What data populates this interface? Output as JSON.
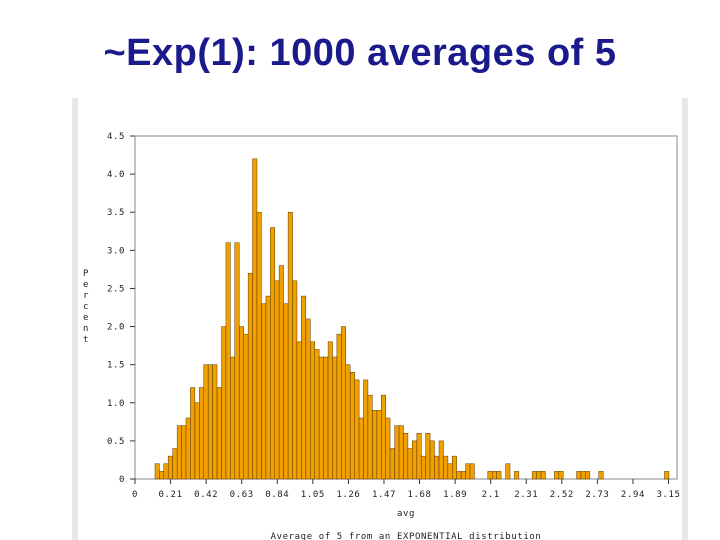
{
  "slide": {
    "title": "~Exp(1): 1000 averages of 5"
  },
  "colors": {
    "title": "#1a1a8c",
    "bar_fill": "#f2a000",
    "bar_stroke": "#5a3b00",
    "frame": "#888888"
  },
  "chart_data": {
    "type": "bar",
    "title": "",
    "xlabel": "avg",
    "ylabel": "Percent",
    "caption": "Average of 5 from an EXPONENTIAL distribution",
    "xlim": [
      0,
      3.2
    ],
    "ylim": [
      0,
      4.5
    ],
    "yticks": [
      "0",
      "0.5",
      "1.0",
      "1.5",
      "2.0",
      "2.5",
      "3.0",
      "3.5",
      "4.0",
      "4.5"
    ],
    "xticks": [
      "0",
      "0.21",
      "0.42",
      "0.63",
      "0.84",
      "1.05",
      "1.26",
      "1.47",
      "1.68",
      "1.89",
      "2.1",
      "2.31",
      "2.52",
      "2.73",
      "2.94",
      "3.15"
    ],
    "bin_width": 0.0262,
    "bin_starts": [
      0.118,
      0.144,
      0.17,
      0.196,
      0.223,
      0.249,
      0.275,
      0.301,
      0.327,
      0.354,
      0.38,
      0.406,
      0.432,
      0.458,
      0.485,
      0.511,
      0.537,
      0.563,
      0.589,
      0.616,
      0.642,
      0.668,
      0.694,
      0.72,
      0.747,
      0.773,
      0.799,
      0.825,
      0.851,
      0.878,
      0.904,
      0.93,
      0.956,
      0.982,
      1.009,
      1.035,
      1.061,
      1.087,
      1.113,
      1.14,
      1.166,
      1.192,
      1.218,
      1.244,
      1.271,
      1.297,
      1.323,
      1.349,
      1.375,
      1.402,
      1.428,
      1.454,
      1.48,
      1.506,
      1.533,
      1.559,
      1.585,
      1.611,
      1.637,
      1.664,
      1.69,
      1.716,
      1.742,
      1.768,
      1.795,
      1.821,
      1.847,
      1.873,
      1.899,
      1.926,
      1.952,
      1.978,
      2.083,
      2.109,
      2.135,
      2.188,
      2.24,
      2.345,
      2.371,
      2.397,
      2.476,
      2.502,
      2.607,
      2.633,
      2.659,
      2.738,
      3.126
    ],
    "values": [
      0.2,
      0.1,
      0.2,
      0.3,
      0.4,
      0.7,
      0.7,
      0.8,
      1.2,
      1.0,
      1.2,
      1.5,
      1.5,
      1.5,
      1.2,
      2.0,
      3.1,
      1.6,
      3.1,
      2.0,
      1.9,
      2.7,
      4.2,
      3.5,
      2.3,
      2.4,
      3.3,
      2.6,
      2.8,
      2.3,
      3.5,
      2.6,
      1.8,
      2.4,
      2.1,
      1.8,
      1.7,
      1.6,
      1.6,
      1.8,
      1.6,
      1.9,
      2.0,
      1.5,
      1.4,
      1.3,
      0.8,
      1.3,
      1.1,
      0.9,
      0.9,
      1.1,
      0.8,
      0.4,
      0.7,
      0.7,
      0.6,
      0.4,
      0.5,
      0.6,
      0.3,
      0.6,
      0.5,
      0.3,
      0.5,
      0.3,
      0.2,
      0.3,
      0.1,
      0.1,
      0.2,
      0.2,
      0.1,
      0.1,
      0.1,
      0.2,
      0.1,
      0.1,
      0.1,
      0.1,
      0.1,
      0.1,
      0.1,
      0.1,
      0.1,
      0.1,
      0.1
    ],
    "grid": false,
    "legend": "none"
  }
}
